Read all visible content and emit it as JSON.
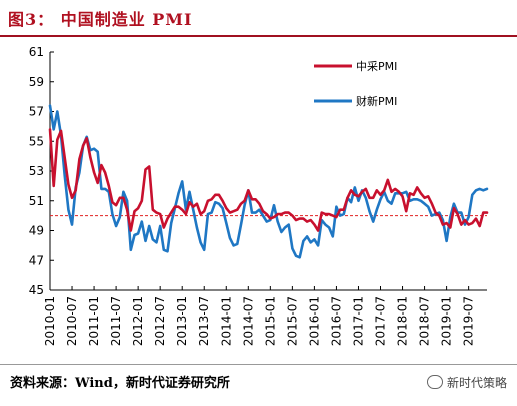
{
  "figure": {
    "title": "图3：  中国制造业 PMI",
    "source": "资料来源：Wind，新时代证券研究所",
    "watermark": "新时代策略"
  },
  "chart_data": {
    "type": "line",
    "title": "",
    "xlabel": "",
    "ylabel": "",
    "ylim": [
      45,
      61
    ],
    "yticks": [
      45,
      47,
      49,
      51,
      53,
      55,
      57,
      59,
      61
    ],
    "xticks": [
      "2010-01",
      "2010-07",
      "2011-01",
      "2011-07",
      "2012-01",
      "2012-07",
      "2013-01",
      "2013-07",
      "2014-01",
      "2014-07",
      "2015-01",
      "2015-07",
      "2016-01",
      "2016-07",
      "2017-01",
      "2017-07",
      "2018-01",
      "2018-07",
      "2019-01",
      "2019-07"
    ],
    "x_start": "2010-01",
    "x_end": "2019-12",
    "reference_line": 50,
    "grid": false,
    "legend_position": "top-right",
    "colors": {
      "series0": "#c8102e",
      "series1": "#1f77c4",
      "reference": "#e02020"
    },
    "series": [
      {
        "name": "中采PMI",
        "values": [
          55.8,
          52.0,
          55.1,
          55.7,
          53.9,
          52.1,
          51.2,
          51.7,
          53.8,
          54.7,
          55.2,
          53.9,
          52.9,
          52.2,
          53.4,
          52.9,
          52.0,
          50.9,
          50.7,
          51.2,
          51.2,
          50.4,
          49.0,
          50.3,
          50.5,
          51.0,
          53.1,
          53.3,
          50.4,
          50.2,
          50.1,
          49.2,
          49.8,
          50.2,
          50.6,
          50.6,
          50.4,
          50.1,
          50.9,
          50.6,
          50.8,
          50.1,
          50.3,
          51.0,
          51.1,
          51.4,
          51.4,
          51.0,
          50.5,
          50.2,
          50.3,
          50.4,
          50.8,
          51.0,
          51.7,
          51.1,
          51.1,
          50.8,
          50.3,
          50.1,
          49.8,
          49.9,
          50.1,
          50.1,
          50.2,
          50.2,
          50.0,
          49.7,
          49.8,
          49.8,
          49.6,
          49.7,
          49.4,
          49.0,
          50.2,
          50.1,
          50.1,
          50.0,
          49.9,
          50.4,
          50.4,
          51.2,
          51.7,
          51.4,
          51.3,
          51.6,
          51.8,
          51.2,
          51.2,
          51.7,
          51.4,
          51.7,
          52.4,
          51.6,
          51.8,
          51.6,
          51.3,
          50.3,
          51.5,
          51.4,
          51.9,
          51.5,
          51.2,
          51.3,
          50.8,
          50.2,
          50.0,
          49.4,
          49.5,
          49.2,
          50.5,
          50.1,
          49.4,
          49.7,
          49.4,
          49.5,
          49.8,
          49.3,
          50.2,
          50.2
        ]
      },
      {
        "name": "财新PMI",
        "values": [
          57.4,
          55.8,
          57.0,
          55.4,
          52.7,
          50.4,
          49.4,
          51.9,
          52.9,
          54.7,
          55.3,
          54.4,
          54.5,
          54.3,
          51.8,
          51.8,
          51.6,
          50.1,
          49.3,
          49.9,
          51.6,
          51.0,
          47.7,
          48.7,
          48.8,
          49.6,
          48.3,
          49.3,
          48.4,
          48.2,
          49.3,
          47.7,
          47.6,
          49.5,
          50.5,
          51.5,
          52.3,
          50.4,
          51.6,
          50.4,
          49.2,
          48.2,
          47.7,
          50.1,
          50.2,
          50.9,
          50.8,
          50.5,
          49.5,
          48.5,
          48.0,
          48.1,
          49.4,
          50.7,
          51.7,
          50.2,
          50.2,
          50.4,
          50.0,
          49.6,
          49.7,
          50.7,
          49.6,
          48.9,
          49.2,
          49.4,
          47.8,
          47.3,
          47.2,
          48.3,
          48.6,
          48.2,
          48.4,
          48.0,
          49.7,
          49.4,
          49.2,
          48.6,
          50.6,
          50.0,
          50.1,
          51.2,
          50.9,
          51.9,
          51.0,
          51.7,
          51.2,
          50.3,
          49.6,
          50.4,
          51.1,
          51.6,
          51.0,
          50.8,
          51.5,
          51.5,
          51.5,
          51.6,
          51.0,
          51.1,
          51.1,
          51.0,
          50.8,
          50.6,
          50.0,
          50.1,
          50.2,
          49.7,
          48.3,
          49.9,
          50.8,
          50.2,
          50.2,
          49.4,
          49.9,
          51.4,
          51.7,
          51.8,
          51.7,
          51.8
        ]
      }
    ]
  }
}
